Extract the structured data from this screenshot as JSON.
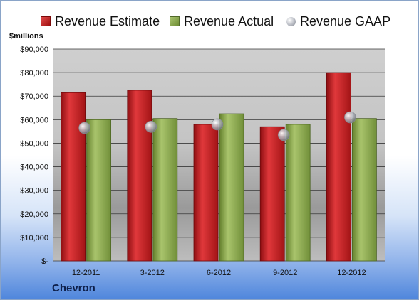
{
  "chart_data": {
    "type": "bar",
    "unit_label": "$millions",
    "company": "Chevron",
    "categories": [
      "12-2011",
      "3-2012",
      "6-2012",
      "9-2012",
      "12-2012"
    ],
    "series": [
      {
        "name": "Revenue Estimate",
        "kind": "bar",
        "color": "#c0191c",
        "values": [
          71500,
          72500,
          58000,
          57000,
          80000
        ]
      },
      {
        "name": "Revenue Actual",
        "kind": "bar",
        "color": "#8ca650",
        "values": [
          60000,
          60500,
          62500,
          58000,
          60500
        ]
      },
      {
        "name": "Revenue GAAP",
        "kind": "marker",
        "color": "#b9bcc4",
        "values": [
          56500,
          57000,
          58000,
          53500,
          61000
        ]
      }
    ],
    "ylim": [
      0,
      90000
    ],
    "yticks": [
      0,
      10000,
      20000,
      30000,
      40000,
      50000,
      60000,
      70000,
      80000,
      90000
    ],
    "ytick_labels": [
      "$-",
      "$10,000",
      "$20,000",
      "$30,000",
      "$40,000",
      "$50,000",
      "$60,000",
      "$70,000",
      "$80,000",
      "$90,000"
    ],
    "grid": true,
    "legend_position": "top"
  }
}
